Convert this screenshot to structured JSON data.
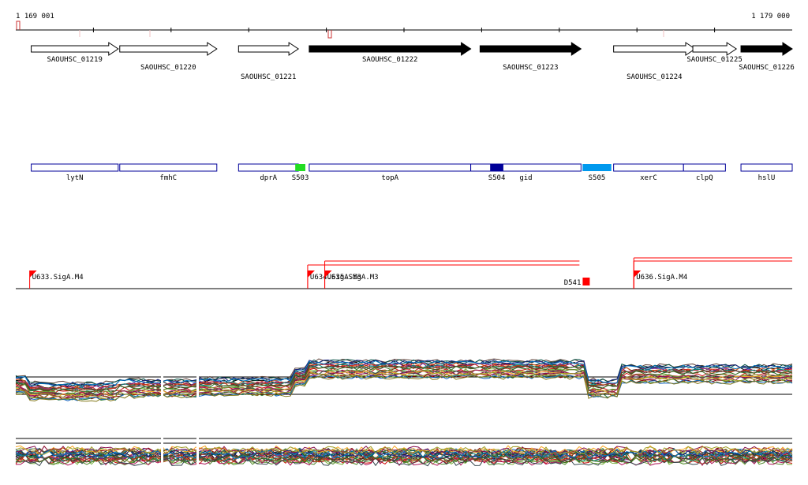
{
  "browser": {
    "range_start": "1 169 001",
    "range_end": "1 179 000",
    "colors": {
      "track_line": "#000000",
      "marker": "#ff0000",
      "marker_light": "#e8a0a0"
    }
  },
  "locus_tags": [
    {
      "name": "SAOUHSC_01219",
      "start": 1169200,
      "end": 1170320,
      "strand": "+",
      "filled": false
    },
    {
      "name": "SAOUHSC_01220",
      "start": 1170340,
      "end": 1171590,
      "strand": "+",
      "filled": false
    },
    {
      "name": "SAOUHSC_01221",
      "start": 1171870,
      "end": 1172640,
      "strand": "+",
      "filled": false
    },
    {
      "name": "SAOUHSC_01222",
      "start": 1172780,
      "end": 1174860,
      "strand": "+",
      "filled": true
    },
    {
      "name": "SAOUHSC_01223",
      "start": 1174980,
      "end": 1176280,
      "strand": "+",
      "filled": true
    },
    {
      "name": "SAOUHSC_01224",
      "start": 1176700,
      "end": 1177750,
      "strand": "+",
      "filled": false
    },
    {
      "name": "SAOUHSC_01225",
      "start": 1177720,
      "end": 1178280,
      "strand": "+",
      "filled": false
    },
    {
      "name": "SAOUHSC_01226",
      "start": 1178340,
      "end": 1179000,
      "strand": "+",
      "filled": true
    }
  ],
  "genes": [
    {
      "name": "lytN",
      "start": 1169200,
      "end": 1170320
    },
    {
      "name": "fmhC",
      "start": 1170340,
      "end": 1171590
    },
    {
      "name": "dprA",
      "start": 1171870,
      "end": 1172640
    },
    {
      "name": "topA",
      "start": 1172780,
      "end": 1174860
    },
    {
      "name": "gid",
      "start": 1174860,
      "end": 1176280
    },
    {
      "name": "xerC",
      "start": 1176700,
      "end": 1177600
    },
    {
      "name": "clpQ",
      "start": 1177600,
      "end": 1178140
    },
    {
      "name": "hslU",
      "start": 1178340,
      "end": 1179000
    }
  ],
  "segments": [
    {
      "name": "S503",
      "start": 1172600,
      "end": 1172730,
      "color": "#22dd22"
    },
    {
      "name": "S504",
      "start": 1175110,
      "end": 1175280,
      "color": "#000099"
    },
    {
      "name": "S505",
      "start": 1176300,
      "end": 1176670,
      "color": "#0099ee"
    }
  ],
  "transcription_units": [
    {
      "name": "U633.SigA.M4",
      "pos": 1169180
    },
    {
      "name": "U634.SigA.M3",
      "pos": 1172760
    },
    {
      "name": "U635.SigA.M3",
      "pos": 1172980
    },
    {
      "name": "U636.SigA.M4",
      "pos": 1176960
    }
  ],
  "downshift": {
    "name": "D541",
    "pos": 1176220
  },
  "expression_track_1": {
    "label": "",
    "n_profiles": 24
  },
  "expression_track_2": {
    "label": "",
    "n_profiles": 24
  }
}
